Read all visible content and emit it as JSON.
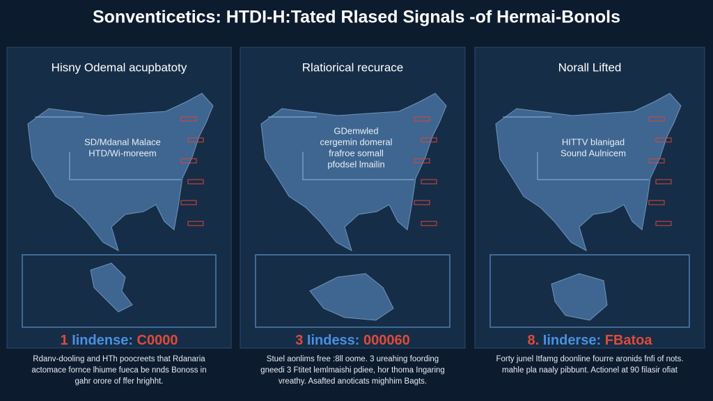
{
  "header": {
    "title": "Sonventicetics: HTDI-H:Tated Rlased Signals -of Hermai-Bonols"
  },
  "panels": [
    {
      "heading": "Hisny Odemal acupbatoty",
      "map_label": [
        "SD/Mdanal Malace",
        "HTD/Wi-moreem"
      ],
      "stat": {
        "number": "1",
        "label": "Iindense:",
        "value": "C0000"
      },
      "description": [
        "Rdanv-dooling and HTh poocreets that Rdanaria",
        "actomace fornce lhiume fueca be nnds Bonoss in",
        "gahr orore of ffer hrighht."
      ]
    },
    {
      "heading": "Rlatiorical recurace",
      "map_label": [
        "GDemwled",
        "cergemin domeral",
        "frafroe somall",
        "pfodsel lmailin"
      ],
      "stat": {
        "number": "3",
        "label": "Iindess:",
        "value": "000060"
      },
      "description": [
        "Stuel aonlims free :8ll oome. 3 ureahing foording",
        "gneedi 3 Ftitet lemlmaishi pdiee, hor thoma Ingaring",
        "vreathy. Asafted anoticats mighhim Bagts."
      ]
    },
    {
      "heading": "Norall Lifted",
      "map_label": [
        "HITTV blanigad",
        "Sound Aulnicem"
      ],
      "stat": {
        "number": "8.",
        "label": "Iinderse:",
        "value": "FBatoa"
      },
      "description": [
        "Forty junel Itfamg doonline fourre aronids fnfi of nots.",
        "mahle pla naaly pibbunt. Actionel at 90 filasir ofiat"
      ]
    }
  ]
}
